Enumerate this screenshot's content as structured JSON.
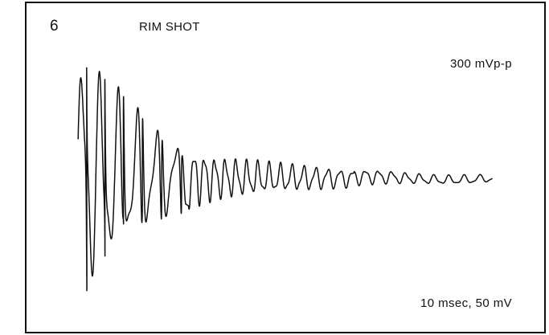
{
  "figure": {
    "number": "6",
    "title": "RIM SHOT"
  },
  "labels": {
    "amplitude": "300 mVp-p",
    "scale": "10 msec, 50 mV"
  },
  "colors": {
    "trace": "#111111",
    "background": "#ffffff",
    "border": "#111111"
  },
  "chart_data": {
    "type": "line",
    "title": "RIM SHOT",
    "xlabel": "",
    "ylabel": "",
    "grid": false,
    "legend": "none",
    "series": [
      {
        "envelope": [
          {
            "t": 0,
            "amp": 150
          },
          {
            "t": 2,
            "amp": 150
          },
          {
            "t": 5,
            "amp": 120
          },
          {
            "t": 10,
            "amp": 85
          },
          {
            "t": 15,
            "amp": 55
          },
          {
            "t": 20,
            "amp": 38
          },
          {
            "t": 25,
            "amp": 28
          },
          {
            "t": 30,
            "amp": 24
          },
          {
            "t": 35,
            "amp": 20
          },
          {
            "t": 40,
            "amp": 17
          },
          {
            "t": 45,
            "amp": 14
          },
          {
            "t": 50,
            "amp": 11
          },
          {
            "t": 55,
            "amp": 9
          },
          {
            "t": 60,
            "amp": 7
          },
          {
            "t": 65,
            "amp": 6
          },
          {
            "t": 70,
            "amp": 6
          },
          {
            "t": 75,
            "amp": 5
          }
        ]
      }
    ]
  }
}
